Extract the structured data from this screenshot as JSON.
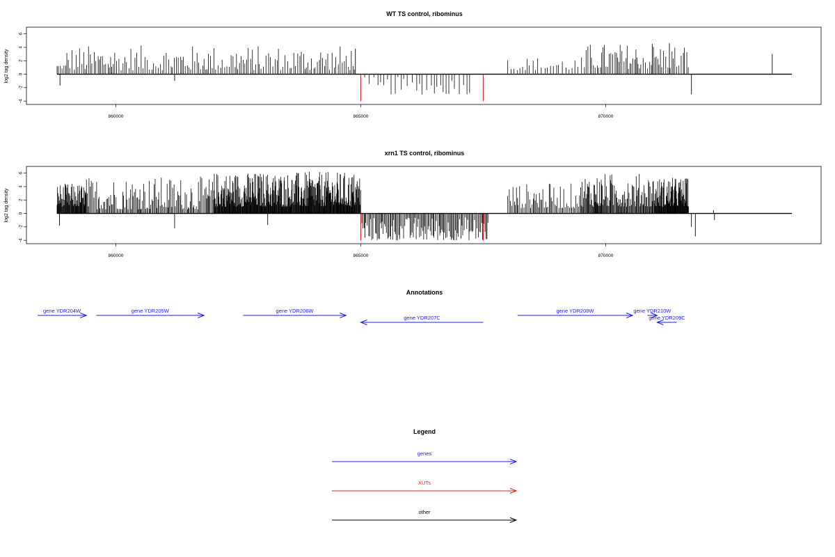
{
  "colors": {
    "gene": "#1a1aff",
    "xut": "#e01f1f",
    "other": "#000000",
    "signal": "#000000"
  },
  "chart_data": [
    {
      "type": "bar",
      "title": "WT TS control, ribominus",
      "ylabel": "log2 tag density",
      "xlim": [
        858400,
        873800
      ],
      "ylim": [
        -4.5,
        7
      ],
      "yticks": [
        -4,
        -2,
        0,
        2,
        4,
        6
      ],
      "xticks": [
        860000,
        865000,
        870000
      ],
      "xtick_labels": [
        "860000",
        "865000",
        "870000"
      ],
      "baseline": [
        858800,
        873800
      ],
      "regions": [
        {
          "from": 858800,
          "to": 859000,
          "min": 0.8,
          "max": 1.6,
          "step": 30
        },
        {
          "from": 859000,
          "to": 864900,
          "min": 0.6,
          "max": 4.3,
          "step": 38
        },
        {
          "from": 865000,
          "to": 867300,
          "min": -3.0,
          "max": -0.4,
          "step": 75
        },
        {
          "from": 868000,
          "to": 869600,
          "min": 0.6,
          "max": 2.6,
          "step": 60
        },
        {
          "from": 869600,
          "to": 871700,
          "min": 0.8,
          "max": 4.6,
          "step": 35
        }
      ],
      "extra_bars": [
        {
          "x": 858860,
          "y": -1.7
        },
        {
          "x": 861200,
          "y": -1.0
        },
        {
          "x": 864890,
          "y": 3.8
        },
        {
          "x": 871750,
          "y": -3.0
        },
        {
          "x": 873400,
          "y": 3.0
        },
        {
          "x": 870950,
          "y": 4.5
        },
        {
          "x": 871300,
          "y": 4.6
        }
      ],
      "xut_bars": [
        {
          "x": 865000,
          "y": -4.0
        },
        {
          "x": 867500,
          "y": -4.0
        }
      ]
    },
    {
      "type": "bar",
      "title": "xrn1 TS control, ribominus",
      "ylabel": "log2 tag density",
      "xlim": [
        858400,
        873800
      ],
      "ylim": [
        -4.5,
        7
      ],
      "yticks": [
        -4,
        -2,
        0,
        2,
        4,
        6
      ],
      "xticks": [
        860000,
        865000,
        870000
      ],
      "xtick_labels": [
        "860000",
        "865000",
        "870000"
      ],
      "baseline": [
        858800,
        873800
      ],
      "regions": [
        {
          "from": 858800,
          "to": 859400,
          "min": 1.0,
          "max": 4.5,
          "step": 10
        },
        {
          "from": 859400,
          "to": 862000,
          "min": 0.6,
          "max": 5.5,
          "step": 22
        },
        {
          "from": 862000,
          "to": 865000,
          "min": 1.0,
          "max": 6.2,
          "step": 9
        },
        {
          "from": 865000,
          "to": 867600,
          "min": -4.0,
          "max": -0.5,
          "step": 22
        },
        {
          "from": 868000,
          "to": 869500,
          "min": 0.8,
          "max": 4.5,
          "step": 25
        },
        {
          "from": 869500,
          "to": 871000,
          "min": 1.0,
          "max": 6.0,
          "step": 14
        },
        {
          "from": 871000,
          "to": 871700,
          "min": 1.0,
          "max": 5.4,
          "step": 8
        }
      ],
      "extra_bars": [
        {
          "x": 858850,
          "y": -1.8
        },
        {
          "x": 861200,
          "y": -2.2
        },
        {
          "x": 863100,
          "y": -1.7
        },
        {
          "x": 868200,
          "y": 2.3
        },
        {
          "x": 871750,
          "y": -2.0
        },
        {
          "x": 871830,
          "y": -3.4
        },
        {
          "x": 872200,
          "y": 0.5
        },
        {
          "x": 872220,
          "y": -1.0
        }
      ],
      "xut_bars": [
        {
          "x": 865000,
          "y": -4.0
        },
        {
          "x": 867500,
          "y": -4.0
        }
      ]
    }
  ],
  "annotations": {
    "title": "Annotations",
    "genes": [
      {
        "label": "gene YDR204W",
        "start": 858400,
        "end": 859400,
        "strand": "+",
        "row": 0
      },
      {
        "label": "gene YDR205W",
        "start": 859600,
        "end": 861800,
        "strand": "+",
        "row": 0
      },
      {
        "label": "gene YDR206W",
        "start": 862600,
        "end": 864700,
        "strand": "+",
        "row": 0
      },
      {
        "label": "gene YDR207C",
        "start": 865000,
        "end": 867500,
        "strand": "-",
        "row": 1
      },
      {
        "label": "gene YDR208W",
        "start": 868200,
        "end": 870550,
        "strand": "+",
        "row": 0
      },
      {
        "label": "gene YDR210W",
        "start": 870850,
        "end": 871050,
        "strand": "+",
        "row": 0
      },
      {
        "label": "gene YDR209C",
        "start": 871050,
        "end": 871450,
        "strand": "-",
        "row": 1
      }
    ]
  },
  "legend": {
    "title": "Legend",
    "items": [
      {
        "label": "genes",
        "color": "#1a1aff"
      },
      {
        "label": "XUTs",
        "color": "#e01f1f"
      },
      {
        "label": "other",
        "color": "#000000"
      }
    ]
  }
}
